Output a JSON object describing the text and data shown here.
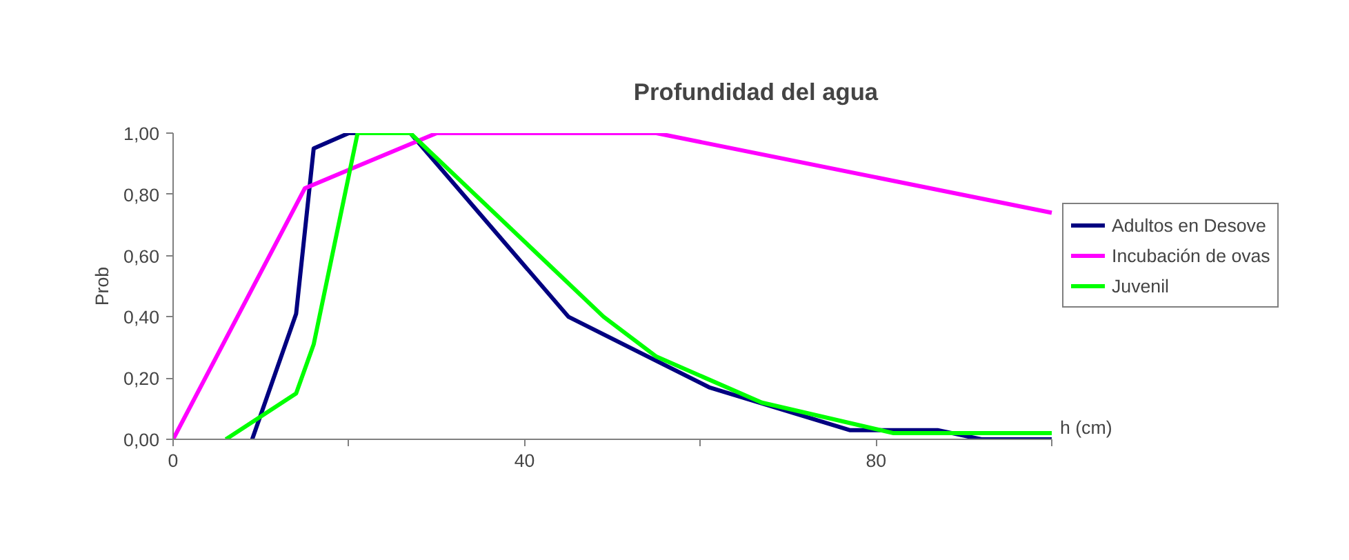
{
  "chart_data": {
    "type": "line",
    "title": "Profundidad del agua",
    "xlabel": "h (cm)",
    "ylabel": "Prob",
    "xlim": [
      0,
      100
    ],
    "xticks": [
      0,
      {
        "value": 20,
        "label": null
      },
      40,
      {
        "value": 60,
        "label": null
      },
      80,
      {
        "value": 100,
        "label": null
      }
    ],
    "ylim": [
      0,
      1
    ],
    "yticks": [
      {
        "value": 0,
        "label": "0,00"
      },
      {
        "value": 0.2,
        "label": "0,20"
      },
      {
        "value": 0.4,
        "label": "0,40"
      },
      {
        "value": 0.6,
        "label": "0,60"
      },
      {
        "value": 0.8,
        "label": "0,80"
      },
      {
        "value": 1,
        "label": "1,00"
      }
    ],
    "grid": false,
    "legend": "right",
    "marker": "none",
    "line_style": "solid",
    "series": [
      {
        "name": "Adultos en Desove",
        "color": "#000080",
        "x": [
          9,
          14,
          16,
          20,
          27,
          45,
          61,
          77,
          87,
          92,
          100
        ],
        "values": [
          0,
          0.41,
          0.95,
          1.0,
          1.0,
          0.4,
          0.17,
          0.03,
          0.03,
          0.0,
          0.0
        ]
      },
      {
        "name": "Incubación de ovas",
        "color": "#ff00ff",
        "x": [
          0,
          15,
          30,
          55,
          100
        ],
        "values": [
          0,
          0.82,
          1.0,
          1.0,
          0.74
        ]
      },
      {
        "name": "Juvenil",
        "color": "#00ff00",
        "x": [
          6,
          14,
          16,
          21,
          27,
          49,
          55,
          67,
          82,
          100
        ],
        "values": [
          0,
          0.15,
          0.31,
          1.0,
          1.0,
          0.4,
          0.27,
          0.12,
          0.02,
          0.02
        ]
      }
    ]
  }
}
